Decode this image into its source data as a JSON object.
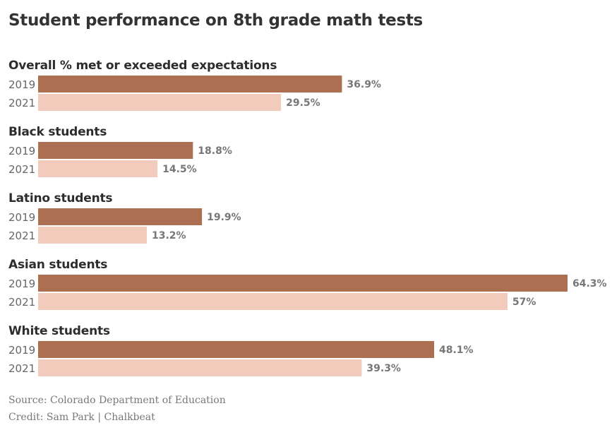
{
  "chart_data": {
    "type": "bar",
    "orientation": "horizontal",
    "title": "Student performance on 8th grade math tests",
    "xlim": [
      0,
      64.3
    ],
    "colors": {
      "2019": "#ad6f51",
      "2021": "#f2cbbd"
    },
    "groups": [
      {
        "label": "Overall % met or exceeded expectations",
        "bars": [
          {
            "year": "2019",
            "value": 36.9,
            "label": "36.9%"
          },
          {
            "year": "2021",
            "value": 29.5,
            "label": "29.5%"
          }
        ]
      },
      {
        "label": "Black students",
        "bars": [
          {
            "year": "2019",
            "value": 18.8,
            "label": "18.8%"
          },
          {
            "year": "2021",
            "value": 14.5,
            "label": "14.5%"
          }
        ]
      },
      {
        "label": "Latino students",
        "bars": [
          {
            "year": "2019",
            "value": 19.9,
            "label": "19.9%"
          },
          {
            "year": "2021",
            "value": 13.2,
            "label": "13.2%"
          }
        ]
      },
      {
        "label": "Asian students",
        "bars": [
          {
            "year": "2019",
            "value": 64.3,
            "label": "64.3%"
          },
          {
            "year": "2021",
            "value": 57,
            "label": "57%"
          }
        ]
      },
      {
        "label": "White students",
        "bars": [
          {
            "year": "2019",
            "value": 48.1,
            "label": "48.1%"
          },
          {
            "year": "2021",
            "value": 39.3,
            "label": "39.3%"
          }
        ]
      }
    ],
    "source": "Source: Colorado Department of Education",
    "credit": "Credit: Sam Park | Chalkbeat"
  }
}
